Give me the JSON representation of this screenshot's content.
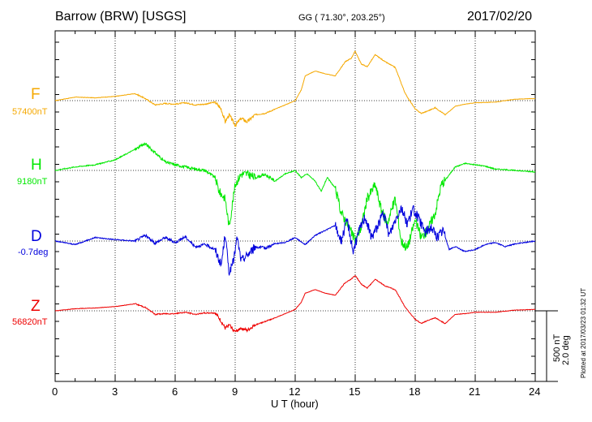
{
  "header": {
    "station": "Barrow (BRW)  [USGS]",
    "coords": "GG ( 71.30°, 203.25°)",
    "date": "2017/02/20"
  },
  "xaxis": {
    "label": "U T (hour)",
    "tick_labels": [
      "0",
      "3",
      "6",
      "9",
      "12",
      "15",
      "18",
      "21",
      "24"
    ]
  },
  "scale": {
    "nt": "500 nT",
    "deg": "2.0 deg"
  },
  "plotted_note": "Plotted at 2017/03/23 01:32 UT",
  "chart_data": {
    "type": "line",
    "title": "Barrow (BRW)  [USGS]",
    "xlabel": "U T (hour)",
    "ylabel": "",
    "xlim": [
      0,
      24
    ],
    "grid": true,
    "scale_bar": "500 nT / 2.0 deg",
    "series": [
      {
        "name": "F",
        "baseline_label": "57400nT",
        "color": "#f5a800",
        "x": [
          0,
          1,
          2,
          3,
          4,
          4.5,
          5,
          5.5,
          6,
          6.5,
          7,
          7.5,
          8,
          8.3,
          8.5,
          8.7,
          9,
          9.3,
          9.6,
          10,
          10.5,
          11,
          11.5,
          12,
          12.3,
          12.5,
          13,
          13.5,
          14,
          14.5,
          14.8,
          15,
          15.3,
          15.6,
          16,
          16.5,
          17,
          17.5,
          18,
          18.3,
          18.6,
          19,
          19.5,
          20,
          20.5,
          21,
          22,
          23,
          24
        ],
        "values": [
          0,
          5,
          4,
          6,
          10,
          3,
          -6,
          -4,
          -5,
          -3,
          -6,
          -5,
          -2,
          -12,
          -30,
          -20,
          -35,
          -25,
          -30,
          -20,
          -18,
          -12,
          -6,
          0,
          15,
          35,
          42,
          38,
          35,
          55,
          60,
          70,
          52,
          48,
          65,
          55,
          47,
          10,
          -12,
          -18,
          -15,
          -10,
          -20,
          -8,
          -5,
          -3,
          -2,
          2,
          3
        ]
      },
      {
        "name": "H",
        "baseline_label": "9180nT",
        "color": "#00e800",
        "x": [
          0,
          1,
          2,
          3,
          4,
          4.5,
          5,
          5.5,
          6,
          6.5,
          7,
          7.5,
          8,
          8.2,
          8.5,
          8.7,
          9,
          9.3,
          9.6,
          10,
          10.5,
          11,
          11.5,
          12,
          12.3,
          12.6,
          13,
          13.3,
          13.6,
          14,
          14.3,
          14.6,
          15,
          15.3,
          15.6,
          16,
          16.3,
          16.6,
          17,
          17.3,
          17.6,
          18,
          18.3,
          18.6,
          19,
          19.3,
          19.6,
          20,
          20.5,
          21,
          21.5,
          22,
          23,
          24
        ],
        "values": [
          0,
          5,
          8,
          15,
          30,
          38,
          25,
          12,
          8,
          5,
          2,
          0,
          -10,
          -30,
          -40,
          -80,
          -20,
          -5,
          -5,
          -10,
          -6,
          -15,
          -5,
          0,
          -10,
          -5,
          -15,
          -30,
          -10,
          -25,
          -60,
          -75,
          -100,
          -80,
          -40,
          -20,
          -55,
          -75,
          -40,
          -100,
          -110,
          -70,
          -95,
          -85,
          -60,
          -20,
          -10,
          5,
          10,
          8,
          6,
          2,
          0,
          -2
        ]
      },
      {
        "name": "D",
        "baseline_label": "-0.7deg",
        "color": "#0000dd",
        "x": [
          0,
          1,
          2,
          3,
          4,
          4.5,
          5,
          5.5,
          6,
          6.5,
          7,
          7.5,
          8,
          8.3,
          8.5,
          8.7,
          8.9,
          9.1,
          9.3,
          9.6,
          10,
          10.5,
          11,
          11.5,
          12,
          12.5,
          13,
          13.5,
          14,
          14.3,
          14.6,
          14.9,
          15.2,
          15.5,
          15.8,
          16.1,
          16.4,
          16.7,
          17,
          17.3,
          17.6,
          17.9,
          18.2,
          18.5,
          18.8,
          19.1,
          19.4,
          19.7,
          20,
          20.5,
          21,
          21.5,
          22,
          22.5,
          23,
          24
        ],
        "values": [
          0,
          -5,
          5,
          2,
          0,
          8,
          -3,
          5,
          -2,
          6,
          -8,
          -5,
          -12,
          -35,
          10,
          -45,
          -30,
          5,
          -28,
          -20,
          -8,
          -10,
          -4,
          -2,
          5,
          -5,
          8,
          15,
          22,
          0,
          30,
          -15,
          15,
          35,
          5,
          20,
          40,
          8,
          30,
          48,
          25,
          45,
          30,
          12,
          20,
          5,
          15,
          -12,
          -8,
          -15,
          -12,
          -5,
          -2,
          -8,
          -4,
          0
        ]
      },
      {
        "name": "Z",
        "baseline_label": "56820nT",
        "color": "#ee0000",
        "x": [
          0,
          1,
          2,
          3,
          4,
          4.5,
          5,
          5.5,
          6,
          6.5,
          7,
          7.5,
          8,
          8.3,
          8.5,
          8.7,
          9,
          9.3,
          9.6,
          10,
          10.5,
          11,
          11.5,
          12,
          12.3,
          12.5,
          13,
          13.5,
          14,
          14.5,
          14.8,
          15,
          15.3,
          15.6,
          16,
          16.5,
          17,
          17.5,
          18,
          18.3,
          18.6,
          19,
          19.5,
          20,
          20.5,
          21,
          22,
          23,
          24
        ],
        "values": [
          0,
          3,
          4,
          6,
          10,
          5,
          -5,
          -4,
          -4,
          -2,
          -5,
          -3,
          -3,
          -15,
          -25,
          -20,
          -30,
          -24,
          -28,
          -20,
          -15,
          -10,
          -4,
          2,
          12,
          25,
          30,
          25,
          22,
          40,
          45,
          50,
          38,
          32,
          45,
          35,
          30,
          5,
          -12,
          -18,
          -14,
          -10,
          -18,
          -5,
          -4,
          -2,
          -2,
          1,
          2
        ]
      }
    ]
  }
}
